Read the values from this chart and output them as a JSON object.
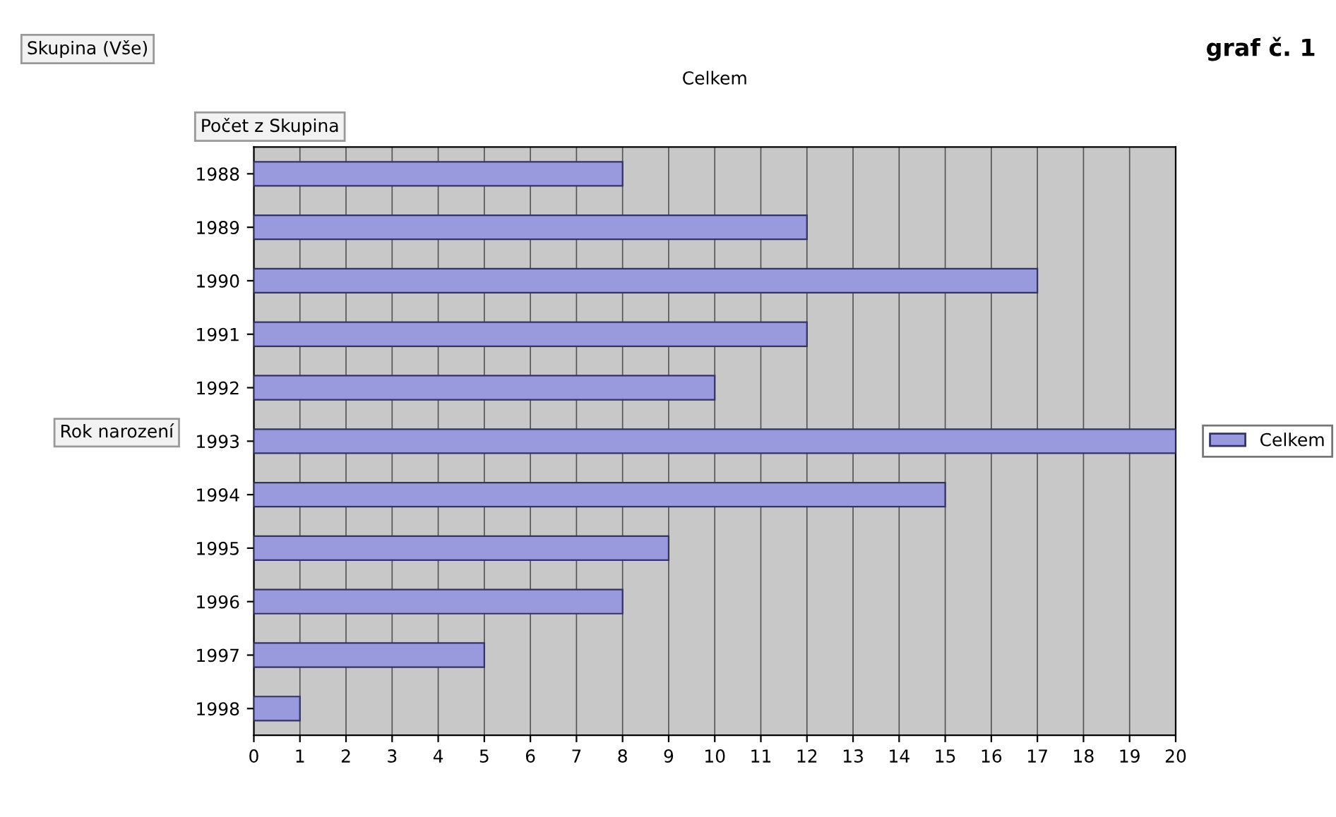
{
  "chart_data": {
    "type": "bar",
    "orientation": "horizontal",
    "title": "Celkem",
    "ylabel": "Rok narození",
    "annotations": [
      "Skupina (Vše)",
      "Počet z Skupina",
      "graf č. 1"
    ],
    "categories": [
      "1988",
      "1989",
      "1990",
      "1991",
      "1992",
      "1993",
      "1994",
      "1995",
      "1996",
      "1997",
      "1998"
    ],
    "series": [
      {
        "name": "Celkem",
        "color": "#9999dd",
        "values": [
          8,
          12,
          17,
          12,
          10,
          20,
          15,
          9,
          8,
          5,
          1
        ]
      }
    ],
    "xlim": [
      0,
      20
    ],
    "xticks": [
      0,
      1,
      2,
      3,
      4,
      5,
      6,
      7,
      8,
      9,
      10,
      11,
      12,
      13,
      14,
      15,
      16,
      17,
      18,
      19,
      20
    ],
    "grid": "x",
    "legend": "right"
  }
}
